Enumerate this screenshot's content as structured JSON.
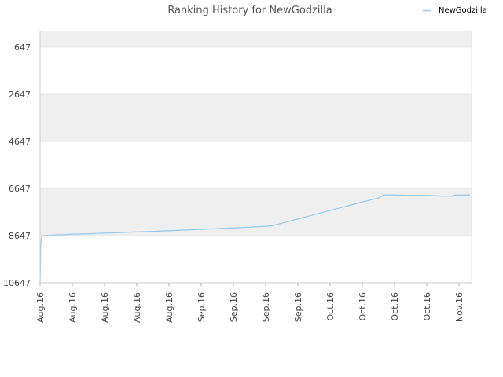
{
  "chart_data": {
    "type": "line",
    "title": "Ranking History for NewGodzilla",
    "xlabel": "",
    "ylabel": "",
    "y_inverted": true,
    "ylim": [
      647,
      10647
    ],
    "yticks": [
      647,
      2647,
      4647,
      6647,
      8647,
      10647
    ],
    "xticks": [
      "Aug.16",
      "Aug.16",
      "Aug.16",
      "Aug.16",
      "Aug.16",
      "Sep.16",
      "Sep.16",
      "Sep.16",
      "Sep.16",
      "Oct.16",
      "Oct.16",
      "Oct.16",
      "Oct.16",
      "Nov.16"
    ],
    "grid": true,
    "band_colors": [
      "#efefef",
      "#ffffff"
    ],
    "legend": {
      "position": "top-right",
      "entries": [
        {
          "name": "NewGodzilla",
          "color": "#99ccf3"
        }
      ]
    },
    "series": [
      {
        "name": "NewGodzilla",
        "color": "#99ccf3",
        "x_tick_index": [
          0,
          0.02,
          0.05,
          0.07,
          0.1,
          0.5,
          1,
          1.5,
          2,
          2.5,
          3,
          3.5,
          4,
          4.5,
          5,
          5.5,
          6,
          6.5,
          7,
          7.2,
          7.5,
          8,
          8.5,
          9,
          9.5,
          10,
          10.5,
          10.6,
          10.65,
          10.8,
          11,
          11.2,
          11.5,
          12,
          12.5,
          12.8,
          12.85,
          13,
          13.4
        ],
        "values": [
          10647,
          9050,
          8680,
          8680,
          8647,
          8620,
          8590,
          8570,
          8540,
          8520,
          8490,
          8470,
          8440,
          8410,
          8380,
          8350,
          8320,
          8290,
          8250,
          8230,
          8120,
          7940,
          7760,
          7580,
          7400,
          7220,
          7050,
          6970,
          6920,
          6920,
          6920,
          6930,
          6940,
          6940,
          6970,
          6970,
          6930,
          6920,
          6920
        ]
      }
    ]
  }
}
